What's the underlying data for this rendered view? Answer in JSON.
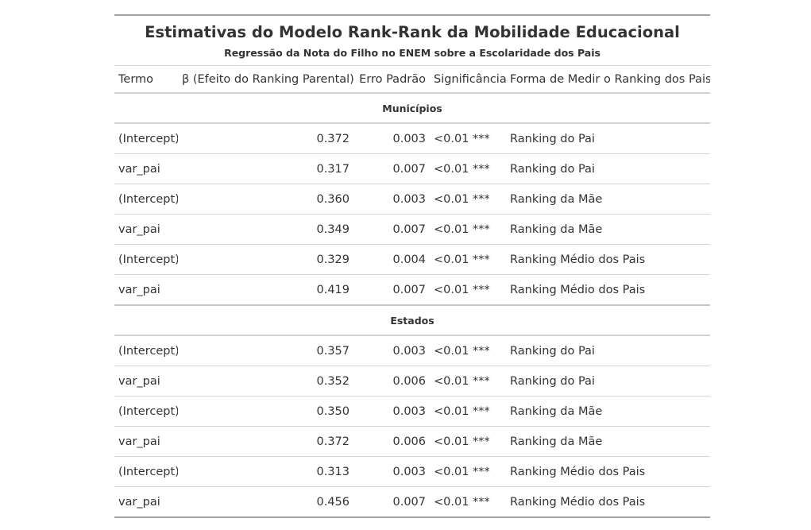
{
  "table": {
    "title": "Estimativas do Modelo Rank-Rank da Mobilidade Educacional",
    "subtitle": "Regressão da Nota do Filho no ENEM sobre a Escolaridade dos Pais",
    "columns": [
      "Termo",
      "β (Efeito do Ranking Parental)",
      "Erro Padrão",
      "Significância",
      "Forma de Medir o Ranking dos Pais"
    ],
    "groups": [
      {
        "label": "Municípios",
        "rows": [
          {
            "termo": "(Intercept)",
            "beta": "0.372",
            "erro": "0.003",
            "sig": "<0.01 ***",
            "forma": "Ranking do Pai"
          },
          {
            "termo": "var_pai",
            "beta": "0.317",
            "erro": "0.007",
            "sig": "<0.01 ***",
            "forma": "Ranking do Pai"
          },
          {
            "termo": "(Intercept)",
            "beta": "0.360",
            "erro": "0.003",
            "sig": "<0.01 ***",
            "forma": "Ranking da Mãe"
          },
          {
            "termo": "var_pai",
            "beta": "0.349",
            "erro": "0.007",
            "sig": "<0.01 ***",
            "forma": "Ranking da Mãe"
          },
          {
            "termo": "(Intercept)",
            "beta": "0.329",
            "erro": "0.004",
            "sig": "<0.01 ***",
            "forma": "Ranking Médio dos Pais"
          },
          {
            "termo": "var_pai",
            "beta": "0.419",
            "erro": "0.007",
            "sig": "<0.01 ***",
            "forma": "Ranking Médio dos Pais"
          }
        ]
      },
      {
        "label": "Estados",
        "rows": [
          {
            "termo": "(Intercept)",
            "beta": "0.357",
            "erro": "0.003",
            "sig": "<0.01 ***",
            "forma": "Ranking do Pai"
          },
          {
            "termo": "var_pai",
            "beta": "0.352",
            "erro": "0.006",
            "sig": "<0.01 ***",
            "forma": "Ranking do Pai"
          },
          {
            "termo": "(Intercept)",
            "beta": "0.350",
            "erro": "0.003",
            "sig": "<0.01 ***",
            "forma": "Ranking da Mãe"
          },
          {
            "termo": "var_pai",
            "beta": "0.372",
            "erro": "0.006",
            "sig": "<0.01 ***",
            "forma": "Ranking da Mãe"
          },
          {
            "termo": "(Intercept)",
            "beta": "0.313",
            "erro": "0.003",
            "sig": "<0.01 ***",
            "forma": "Ranking Médio dos Pais"
          },
          {
            "termo": "var_pai",
            "beta": "0.456",
            "erro": "0.007",
            "sig": "<0.01 ***",
            "forma": "Ranking Médio dos Pais"
          }
        ]
      }
    ]
  }
}
